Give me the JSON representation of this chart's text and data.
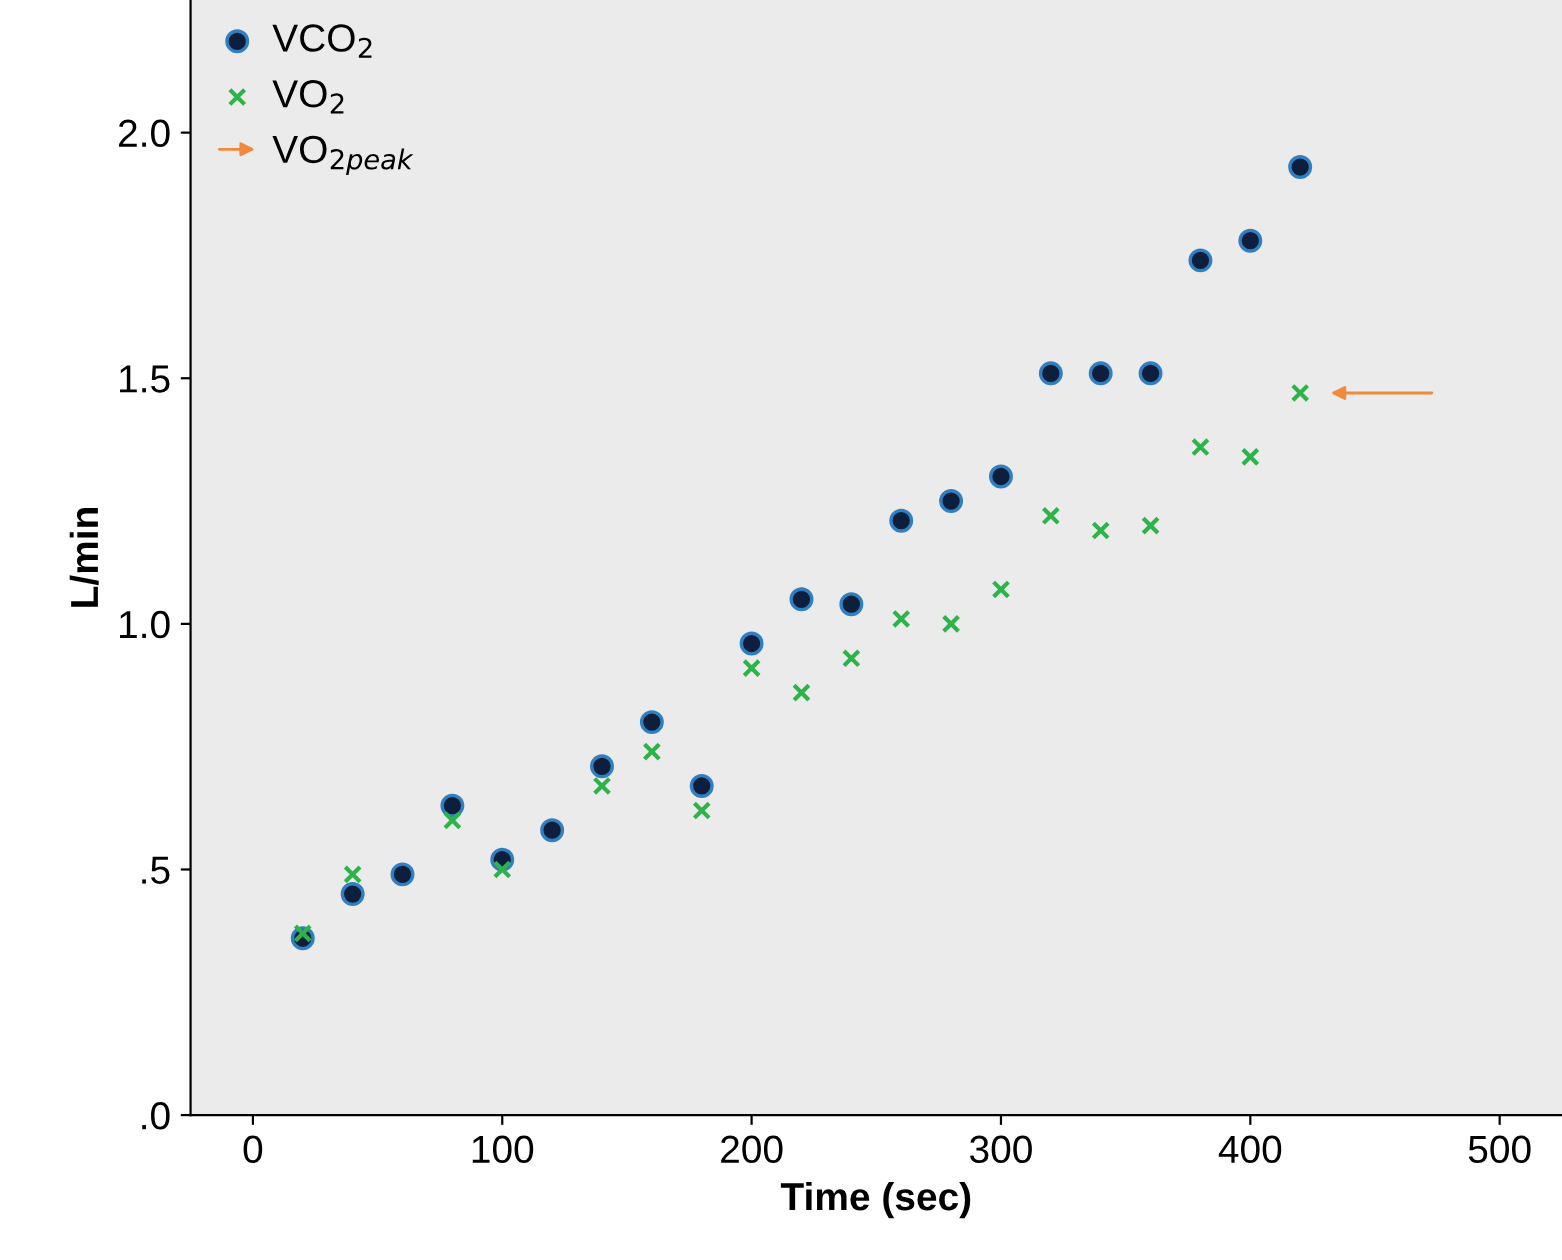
{
  "chart_data": {
    "type": "scatter",
    "xlabel": "Time (sec)",
    "ylabel": "L/min",
    "x": [
      20,
      40,
      60,
      80,
      100,
      120,
      140,
      160,
      180,
      200,
      220,
      240,
      260,
      280,
      300,
      320,
      340,
      360,
      380,
      400,
      420
    ],
    "series": [
      {
        "name": "VCO$_{2}$",
        "color": "#0d1f3c",
        "marker": "circle",
        "values": [
          0.36,
          0.45,
          0.49,
          0.63,
          0.52,
          0.58,
          0.71,
          0.8,
          0.67,
          0.96,
          1.05,
          1.04,
          1.21,
          1.25,
          1.3,
          1.51,
          1.51,
          1.51,
          1.74,
          1.78,
          1.93
        ]
      },
      {
        "name": "VO$_{2}$",
        "color": "#2db34a",
        "marker": "cross",
        "values": [
          0.37,
          0.49,
          null,
          0.6,
          0.5,
          null,
          0.67,
          0.74,
          0.62,
          0.91,
          0.86,
          0.93,
          1.01,
          1.0,
          1.07,
          1.22,
          1.19,
          1.2,
          1.36,
          1.34,
          1.47
        ]
      }
    ],
    "annotations": [
      "VO$_{2peak}$"
    ],
    "xlim": [
      -25,
      525
    ],
    "ylim": [
      0,
      2.27
    ],
    "xticks": [
      0,
      100,
      200,
      300,
      400,
      500
    ],
    "yticks": [
      {
        "value": 0,
        "label": ".0"
      },
      {
        "value": 0.5,
        "label": ".5"
      },
      {
        "value": 1.0,
        "label": "1.0"
      },
      {
        "value": 1.5,
        "label": "1.5"
      },
      {
        "value": 2.0,
        "label": "2.0"
      }
    ],
    "grid": false,
    "legend": "top left"
  }
}
